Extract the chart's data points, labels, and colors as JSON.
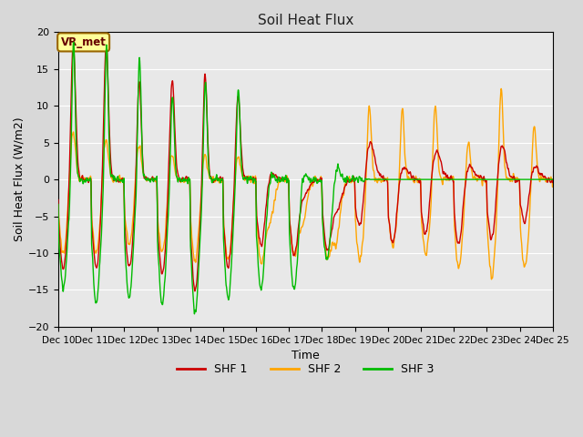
{
  "title": "Soil Heat Flux",
  "xlabel": "Time",
  "ylabel": "Soil Heat Flux (W/m2)",
  "ylim": [
    -20,
    20
  ],
  "yticks": [
    -20,
    -15,
    -10,
    -5,
    0,
    5,
    10,
    15,
    20
  ],
  "xtick_labels": [
    "Dec 10",
    "Dec 11",
    "Dec 12",
    "Dec 13",
    "Dec 14",
    "Dec 15",
    "Dec 16",
    "Dec 17",
    "Dec 18",
    "Dec 19",
    "Dec 20",
    "Dec 21",
    "Dec 22",
    "Dec 23",
    "Dec 24",
    "Dec 25"
  ],
  "colors": {
    "SHF1": "#cc0000",
    "SHF2": "#ffa500",
    "SHF3": "#00bb00"
  },
  "legend_labels": [
    "SHF 1",
    "SHF 2",
    "SHF 3"
  ],
  "annotation_text": "VR_met",
  "annotation_bg": "#ffff99",
  "annotation_border": "#996600",
  "bg_color": "#e8e8e8",
  "grid_color": "#ffffff",
  "linewidth": 1.0,
  "fig_bg": "#d8d8d8"
}
